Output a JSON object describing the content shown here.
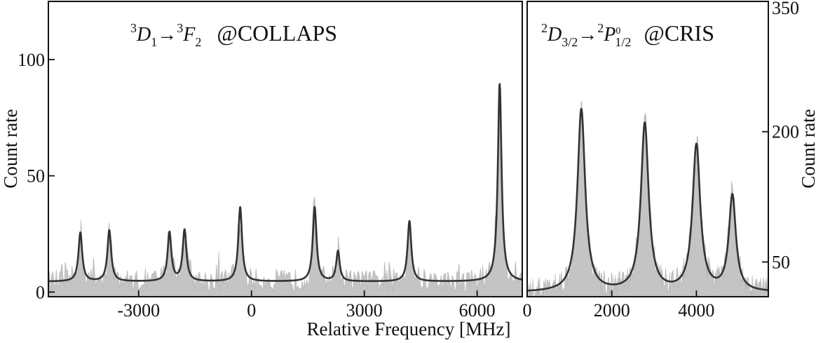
{
  "chart_data": [
    {
      "type": "line",
      "panel": "left",
      "label": {
        "superscript_1": "3",
        "symbol_1": "D",
        "subscript_1": "1",
        "arrow": "→",
        "superscript_2": "3",
        "symbol_2": "F",
        "subscript_2": "2",
        "facility": "@COLLAPS"
      },
      "xlabel": "Relative Frequency [MHz]",
      "ylabel": "Count rate",
      "xlim": [
        -5400,
        7200
      ],
      "ylim": [
        -2,
        125
      ],
      "xticks": [
        -3000,
        0,
        3000,
        6000
      ],
      "xtick_labels": [
        "-3000",
        "0",
        "3000",
        "6000"
      ],
      "yticks": [
        0,
        50,
        100
      ],
      "ytick_labels": [
        "0",
        "50",
        "100"
      ],
      "background": 4.5,
      "peaks": [
        {
          "x": -4550,
          "amplitude": 21,
          "width": 60
        },
        {
          "x": -3780,
          "amplitude": 22,
          "width": 60
        },
        {
          "x": -2180,
          "amplitude": 21,
          "width": 60
        },
        {
          "x": -1780,
          "amplitude": 22,
          "width": 60
        },
        {
          "x": -300,
          "amplitude": 32,
          "width": 60
        },
        {
          "x": 1680,
          "amplitude": 32,
          "width": 60
        },
        {
          "x": 2300,
          "amplitude": 13,
          "width": 55
        },
        {
          "x": 4200,
          "amplitude": 26,
          "width": 60
        },
        {
          "x": 6600,
          "amplitude": 85,
          "width": 60
        }
      ],
      "grid": false,
      "legend": "none"
    },
    {
      "type": "line",
      "panel": "right",
      "label": {
        "superscript_1": "2",
        "symbol_1": "D",
        "subscript_1": "3/2",
        "arrow": "→",
        "superscript_2": "2",
        "symbol_2": "P",
        "sup_sub_2": "0",
        "subscript_2": "1/2",
        "facility": "@CRIS"
      },
      "xlabel": "Relative Frequency [MHz]",
      "ylabel": "Count rate",
      "ylabel_position": "right",
      "xlim": [
        0,
        5700
      ],
      "ylim": [
        10,
        350
      ],
      "xticks": [
        0,
        2000,
        4000
      ],
      "xtick_labels": [
        "0",
        "2000",
        "4000"
      ],
      "yticks": [
        50,
        200,
        350
      ],
      "ytick_labels": [
        "50",
        "200",
        "350"
      ],
      "background": 15,
      "peaks": [
        {
          "x": 1280,
          "amplitude": 210,
          "width": 110
        },
        {
          "x": 2780,
          "amplitude": 193,
          "width": 110
        },
        {
          "x": 4000,
          "amplitude": 168,
          "width": 110
        },
        {
          "x": 4850,
          "amplitude": 110,
          "width": 100
        }
      ],
      "grid": false,
      "legend": "none"
    }
  ]
}
